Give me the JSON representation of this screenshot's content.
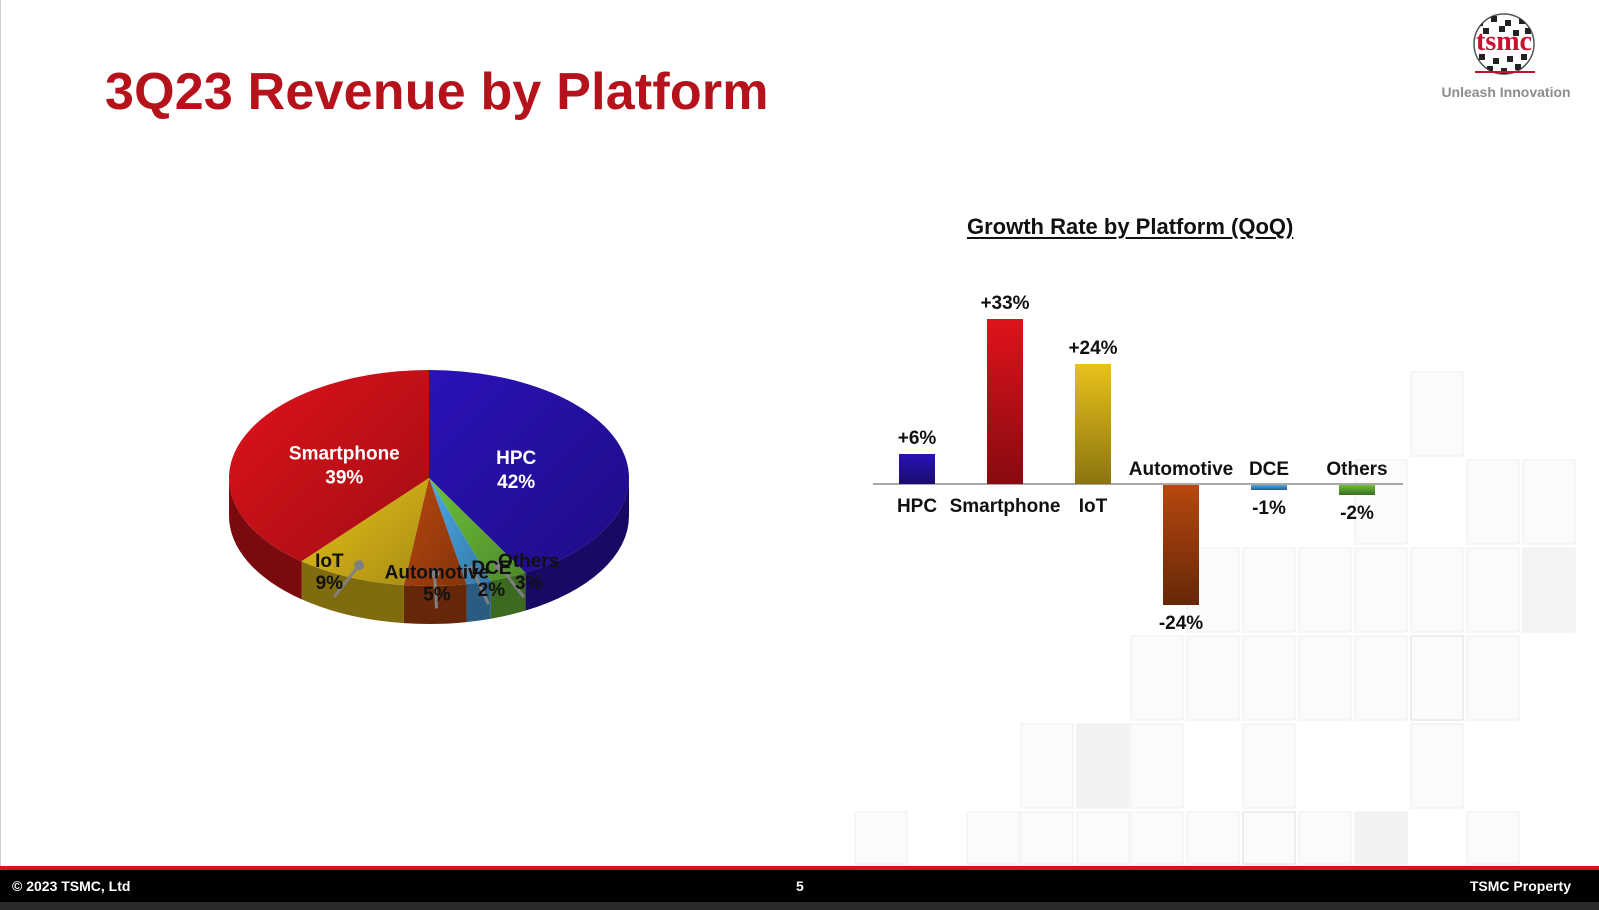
{
  "slide": {
    "title": "3Q23 Revenue by Platform",
    "logo_text": "tsmc",
    "tagline": "Unleash Innovation",
    "footer": {
      "copyright": "© 2023 TSMC, Ltd",
      "page_number": "5",
      "property": "TSMC Property"
    }
  },
  "colors": {
    "accent": "#b5121b",
    "HPC": "#2a12b8",
    "Smartphone": "#e0121b",
    "IoT": "#e8c21a",
    "Automotive": "#b8470e",
    "DCE": "#4aa8e8",
    "Others": "#6cc03a"
  },
  "chart_data": [
    {
      "type": "pie",
      "title": "",
      "slices": [
        {
          "label": "HPC",
          "value": 42,
          "value_label": "42%"
        },
        {
          "label": "Smartphone",
          "value": 39,
          "value_label": "39%"
        },
        {
          "label": "IoT",
          "value": 9,
          "value_label": "9%"
        },
        {
          "label": "Automotive",
          "value": 5,
          "value_label": "5%"
        },
        {
          "label": "DCE",
          "value": 2,
          "value_label": "2%"
        },
        {
          "label": "Others",
          "value": 3,
          "value_label": "3%"
        }
      ]
    },
    {
      "type": "bar",
      "title": "Growth Rate by Platform (QoQ)",
      "categories": [
        "HPC",
        "Smartphone",
        "IoT",
        "Automotive",
        "DCE",
        "Others"
      ],
      "values": [
        6,
        33,
        24,
        -24,
        -1,
        -2
      ],
      "value_labels": [
        "+6%",
        "+33%",
        "+24%",
        "-24%",
        "-1%",
        "-2%"
      ],
      "xlabel": "",
      "ylabel": ""
    }
  ]
}
